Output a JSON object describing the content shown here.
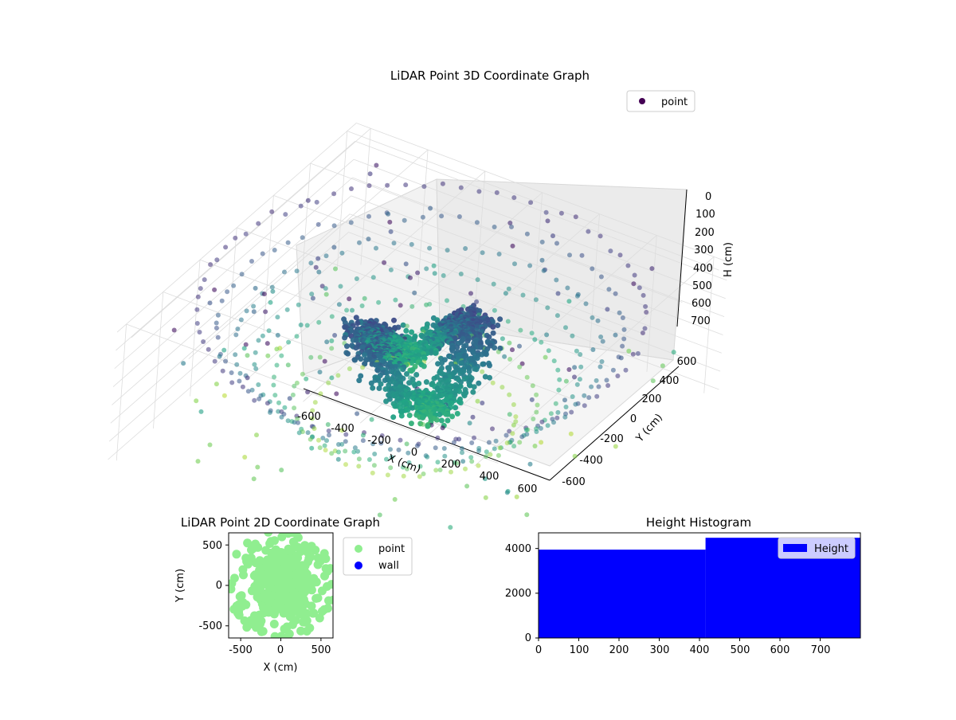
{
  "chart_data": [
    {
      "type": "scatter",
      "projection": "3d",
      "title": "LiDAR Point 3D Coordinate Graph",
      "xlabel": "X (cm)",
      "ylabel": "Y (cm)",
      "zlabel": "H (cm)",
      "xlim": [
        -650,
        650
      ],
      "ylim": [
        -650,
        650
      ],
      "zlim": [
        0,
        750
      ],
      "z_inverted": true,
      "x_ticks": [
        "-600",
        "-400",
        "-200",
        "0",
        "200",
        "400",
        "600"
      ],
      "y_ticks": [
        "-600",
        "-400",
        "-200",
        "0",
        "200",
        "400",
        "600"
      ],
      "z_ticks": [
        "0",
        "100",
        "200",
        "300",
        "400",
        "500",
        "600",
        "700"
      ],
      "colormap": "viridis",
      "series": [
        {
          "name": "point",
          "color": "#440154"
        }
      ],
      "legend": "top-right",
      "grid": true
    },
    {
      "type": "scatter",
      "title": "LiDAR Point 2D Coordinate Graph",
      "xlabel": "X (cm)",
      "ylabel": "Y (cm)",
      "xlim": [
        -650,
        650
      ],
      "ylim": [
        -650,
        650
      ],
      "x_ticks": [
        "-500",
        "0",
        "500"
      ],
      "y_ticks": [
        "-500",
        "0",
        "500"
      ],
      "series": [
        {
          "name": "point",
          "color": "#90ee90"
        },
        {
          "name": "wall",
          "color": "#0000ff"
        }
      ],
      "legend": "outside-right"
    },
    {
      "type": "bar",
      "title": "Height Histogram",
      "bins": [
        [
          0,
          415
        ],
        [
          415,
          800
        ]
      ],
      "values": [
        3950,
        4480
      ],
      "xlim": [
        0,
        800
      ],
      "ylim": [
        0,
        4700
      ],
      "x_ticks": [
        "0",
        "100",
        "200",
        "300",
        "400",
        "500",
        "600",
        "700"
      ],
      "y_ticks": [
        "0",
        "2000",
        "4000"
      ],
      "series": [
        {
          "name": "Height",
          "color": "#0000ff"
        }
      ],
      "legend": "top-right"
    }
  ]
}
